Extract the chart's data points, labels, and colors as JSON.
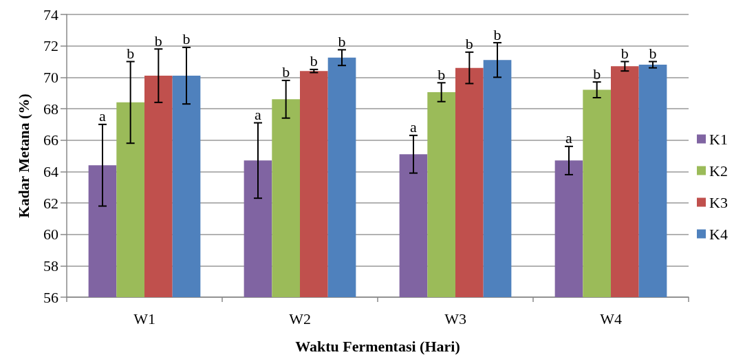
{
  "chart_data": {
    "type": "bar",
    "xlabel": "Waktu Fermentasi (Hari)",
    "ylabel": "Kadar Metana (%)",
    "categories": [
      "W1",
      "W2",
      "W3",
      "W4"
    ],
    "ylim": [
      56,
      74
    ],
    "yticks": [
      56,
      58,
      60,
      62,
      64,
      66,
      68,
      70,
      72,
      74
    ],
    "grid": "y",
    "legend": "right",
    "series": [
      {
        "name": "K1",
        "color": "#8064a2",
        "values": [
          64.4,
          64.7,
          65.1,
          64.7
        ],
        "errors": [
          2.6,
          2.4,
          1.2,
          0.9
        ],
        "value_labels": [
          "a",
          "a",
          "a",
          "a"
        ]
      },
      {
        "name": "K2",
        "color": "#9bbb59",
        "values": [
          68.4,
          68.6,
          69.05,
          69.2
        ],
        "errors": [
          2.6,
          1.2,
          0.6,
          0.5
        ],
        "value_labels": [
          "b",
          "b",
          "b",
          "b"
        ]
      },
      {
        "name": "K3",
        "color": "#c0504d",
        "values": [
          70.1,
          70.4,
          70.6,
          70.7
        ],
        "errors": [
          1.7,
          0.1,
          1.0,
          0.3
        ],
        "value_labels": [
          "b",
          "b",
          "b",
          "b"
        ]
      },
      {
        "name": "K4",
        "color": "#4f81bd",
        "values": [
          70.1,
          71.25,
          71.1,
          70.8
        ],
        "errors": [
          1.8,
          0.5,
          1.1,
          0.2
        ],
        "value_labels": [
          "b",
          "b",
          "b",
          "b"
        ]
      }
    ]
  }
}
